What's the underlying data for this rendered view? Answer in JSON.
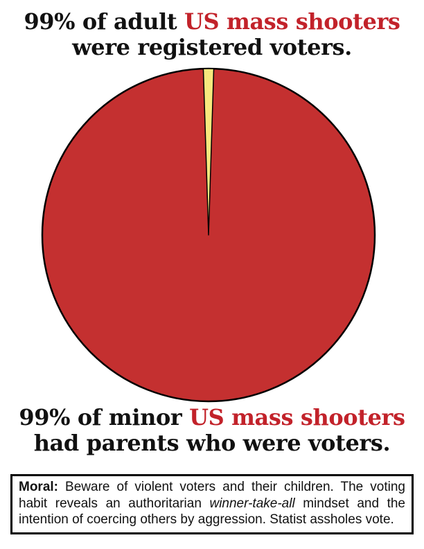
{
  "colors": {
    "text_black": "#111111",
    "text_red": "#c2222a",
    "pie_red": "#c43030",
    "pie_yellow": "#f8e87e",
    "outline_black": "#000000",
    "background": "#ffffff"
  },
  "top_caption": {
    "line1_black": "99% of adult ",
    "line1_red": "US mass shooters",
    "line2": "were registered voters."
  },
  "bottom_caption": {
    "line1_black": "99% of minor ",
    "line1_red": "US mass shooters",
    "line2": "had parents who were voters."
  },
  "moral_box": {
    "label": "Moral:",
    "before_italic": " Beware of violent voters and their children. The voting habit reveals an authoritarian ",
    "italic": "winner-take-all",
    "after_italic": " mindset and the intention of coercing others by aggression. Statist assholes vote."
  },
  "chart_data": {
    "type": "pie",
    "values": [
      99,
      1
    ],
    "slice_colors": [
      "#c43030",
      "#f8e87e"
    ],
    "outline_color": "#000000",
    "small_slice_position": "top-center",
    "labels_shown": false,
    "legend": false
  }
}
